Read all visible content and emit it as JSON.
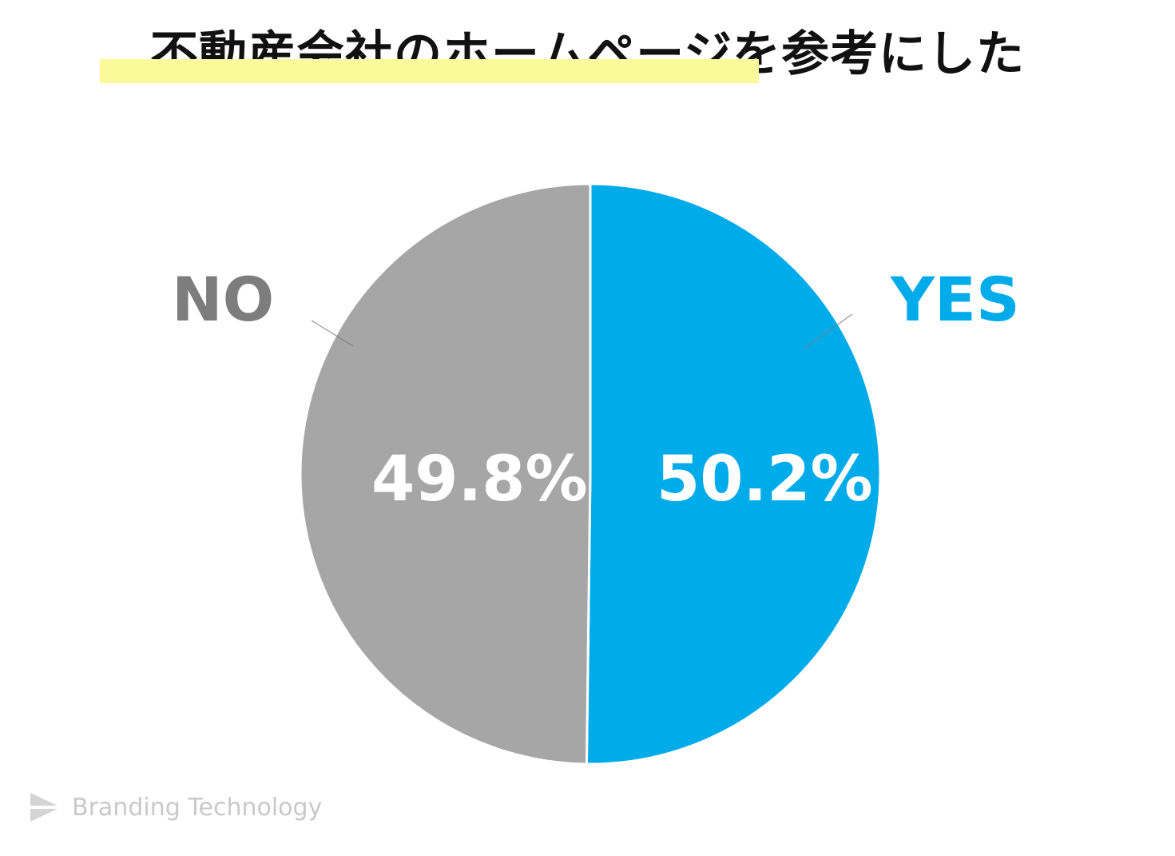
{
  "title": "不動産会社のホームページを参考にした",
  "chart_data": {
    "type": "pie",
    "title": "不動産会社のホームページを参考にした",
    "slices": [
      {
        "label": "YES",
        "value": 50.2,
        "value_label": "50.2%",
        "color": "#00abea"
      },
      {
        "label": "NO",
        "value": 49.8,
        "value_label": "49.8%",
        "color": "#a6a6a6"
      }
    ],
    "start_angle": "12 o'clock",
    "direction": "clockwise"
  },
  "colors": {
    "yes": "#00abea",
    "no": "#a6a6a6",
    "no_label": "#7d7d7d",
    "title_highlight": "#fafa9a"
  },
  "brand": {
    "name": "Branding Technology",
    "icon": "paper-plane-logo-icon"
  }
}
